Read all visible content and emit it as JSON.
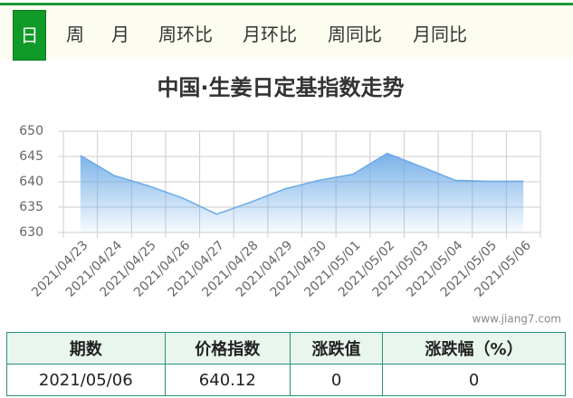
{
  "tabs": [
    "日",
    "周",
    "月",
    "周环比",
    "月环比",
    "周同比",
    "月同比"
  ],
  "chart_data": {
    "type": "area",
    "title": "中国·生姜日定基指数走势",
    "categories": [
      "2021/04/23",
      "2021/04/24",
      "2021/04/25",
      "2021/04/26",
      "2021/04/27",
      "2021/04/28",
      "2021/04/29",
      "2021/04/30",
      "2021/05/01",
      "2021/05/02",
      "2021/05/03",
      "2021/05/04",
      "2021/05/05",
      "2021/05/06"
    ],
    "values": [
      645.2,
      641.2,
      639.2,
      636.8,
      633.6,
      636.0,
      638.6,
      640.3,
      641.5,
      645.6,
      643.0,
      640.3,
      640.1,
      640.12
    ],
    "color": "#6aa9e6",
    "ylim": [
      630,
      650
    ],
    "yticks": [
      630,
      635,
      640,
      645,
      650
    ],
    "grid": true
  },
  "watermark": "www.jiang7.com",
  "table": {
    "header": [
      "期数",
      "价格指数",
      "涨跌值",
      "涨跌幅（%）"
    ],
    "rows": [
      [
        "2021/05/06",
        "640.12",
        "0",
        "0"
      ]
    ]
  }
}
